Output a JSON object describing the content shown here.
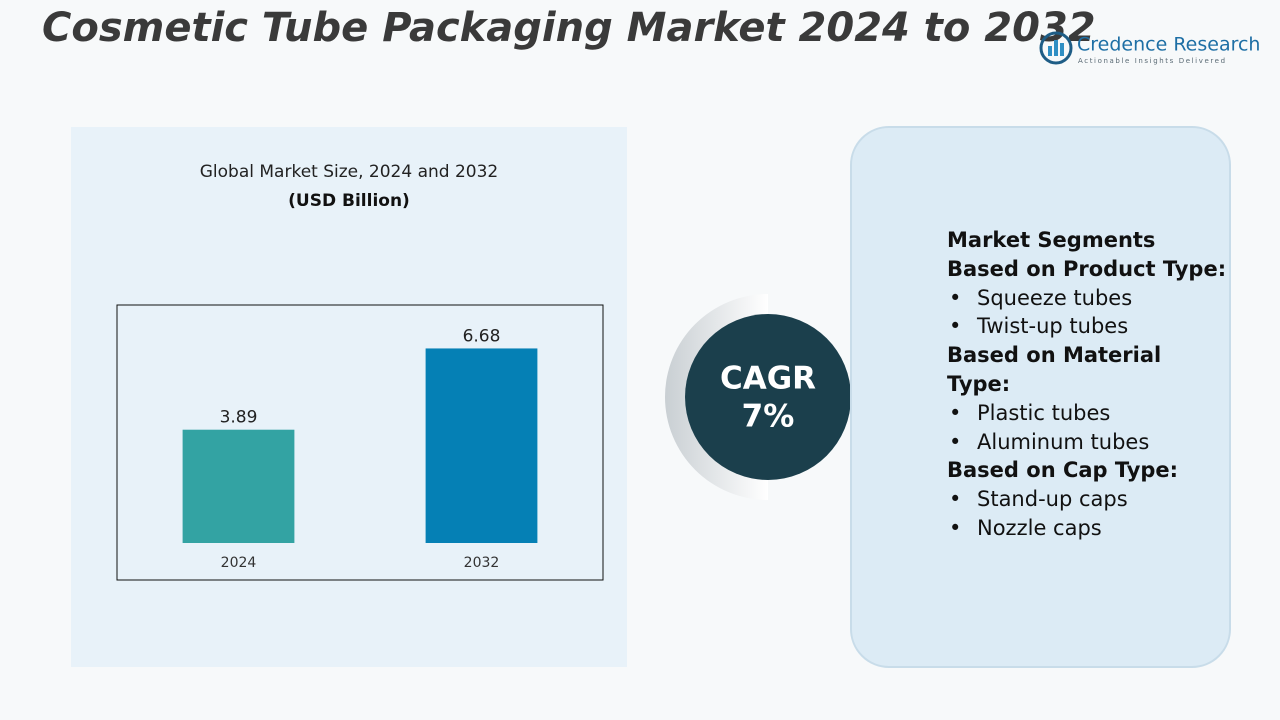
{
  "header": {
    "title": "Cosmetic Tube Packaging Market 2024 to 2032"
  },
  "logo": {
    "name": "Credence Research",
    "tagline": "Actionable Insights Delivered"
  },
  "chart_data": {
    "type": "bar",
    "title": "Global Market Size, 2024 and 2032",
    "subtitle": "(USD Billion)",
    "categories": [
      "2024",
      "2032"
    ],
    "values": [
      3.89,
      6.68
    ],
    "colors": [
      "#33a3a3",
      "#0580b5"
    ],
    "ylim": [
      0,
      8
    ]
  },
  "cagr": {
    "label": "CAGR",
    "value": "7%"
  },
  "segments": {
    "heading": "Market Segments",
    "groups": [
      {
        "title": "Based on Product Type:",
        "items": [
          "Squeeze tubes",
          "Twist-up tubes"
        ]
      },
      {
        "title": "Based on Material Type:",
        "items": [
          "Plastic tubes",
          "Aluminum tubes"
        ]
      },
      {
        "title": "Based on Cap Type:",
        "items": [
          "Stand-up caps",
          "Nozzle caps"
        ]
      }
    ]
  }
}
